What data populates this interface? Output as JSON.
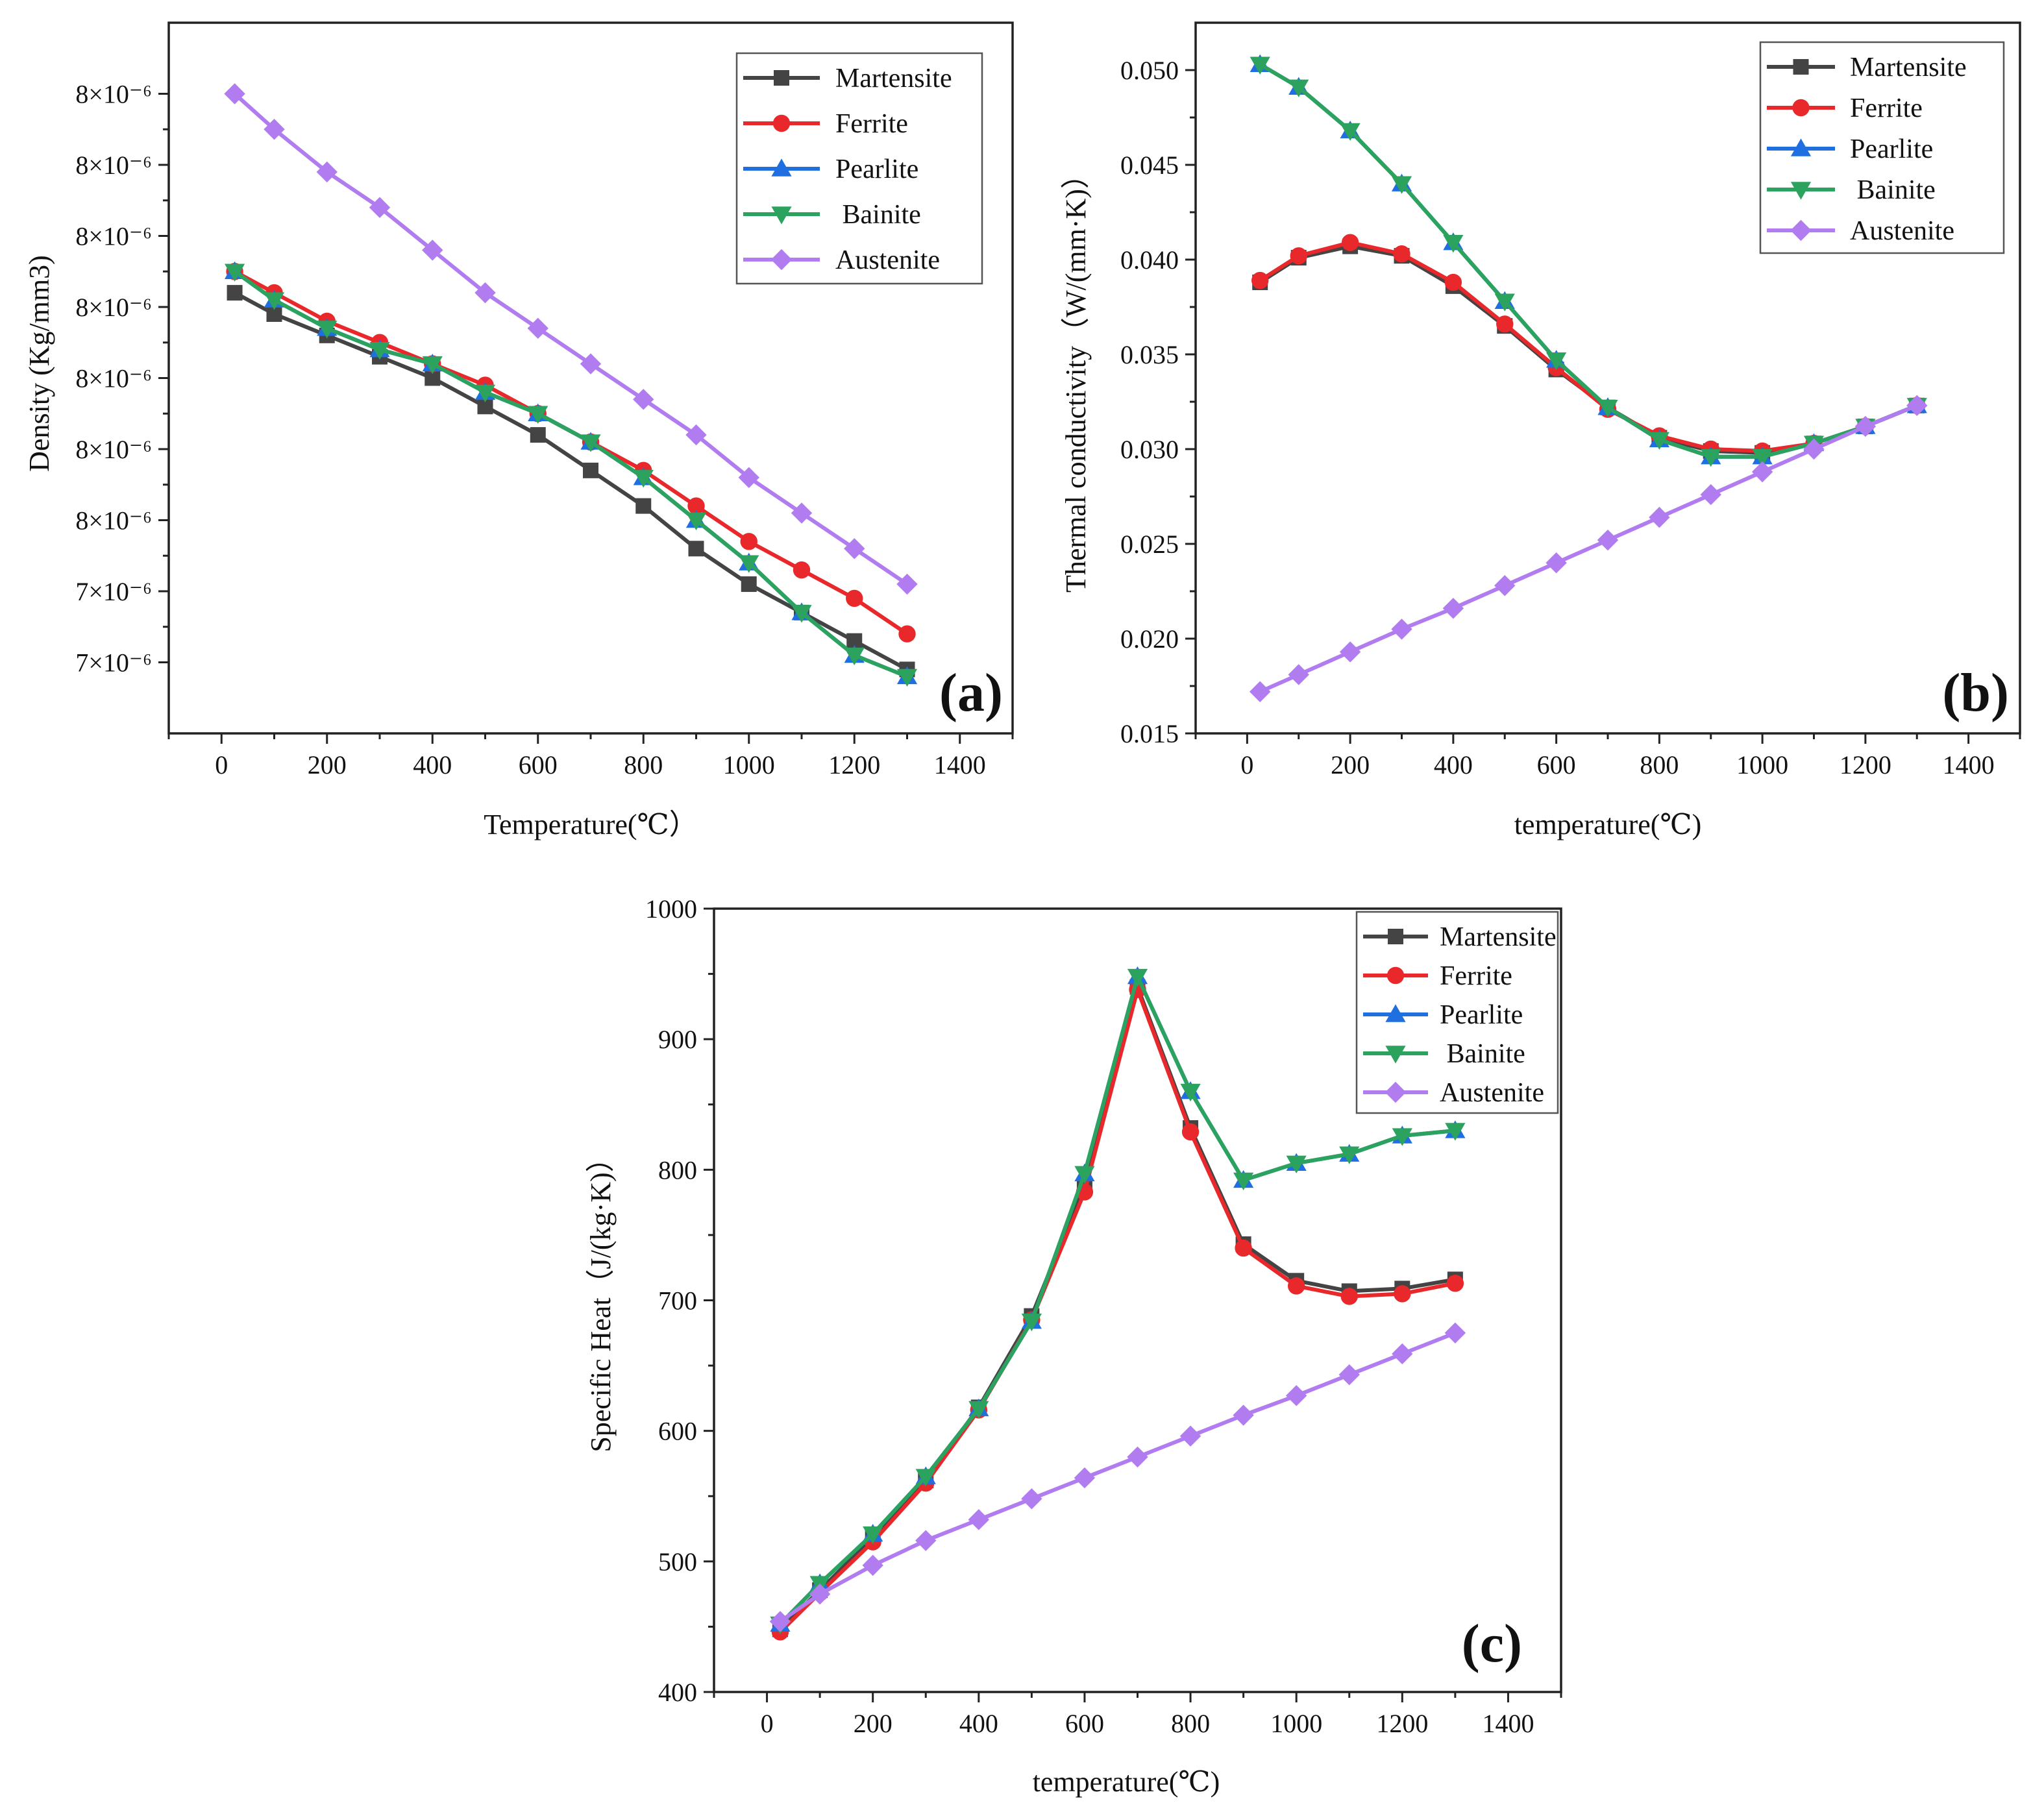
{
  "chart_data": [
    {
      "panel": "(a)",
      "type": "line",
      "title": "",
      "xlabel": "Temperature(℃）",
      "ylabel": "Density (Kg/mm3)",
      "xlim": [
        -100,
        1500
      ],
      "ylim": [
        7.2,
        8.2
      ],
      "xticks": [
        0,
        200,
        400,
        600,
        800,
        1000,
        1200,
        1400
      ],
      "yticks": [
        7.3,
        7.4,
        7.5,
        7.6,
        7.7,
        7.8,
        7.9,
        8.0,
        8.1
      ],
      "ytick_labels": [
        "7×10⁻⁶",
        "7×10⁻⁶",
        "8×10⁻⁶",
        "8×10⁻⁶",
        "8×10⁻⁶",
        "8×10⁻⁶",
        "8×10⁻⁶",
        "8×10⁻⁶",
        "8×10⁻⁶"
      ],
      "x": [
        25,
        100,
        200,
        300,
        400,
        500,
        600,
        700,
        800,
        900,
        1000,
        1100,
        1200,
        1300
      ],
      "legend_position": "top-right",
      "series": [
        {
          "name": "Martensite",
          "color": "#444444",
          "marker": "square",
          "values": [
            7.82,
            7.79,
            7.76,
            7.73,
            7.7,
            7.66,
            7.62,
            7.57,
            7.52,
            7.46,
            7.41,
            7.37,
            7.33,
            7.29
          ]
        },
        {
          "name": "Ferrite",
          "color": "#e8282b",
          "marker": "circle",
          "values": [
            7.85,
            7.82,
            7.78,
            7.75,
            7.72,
            7.69,
            7.65,
            7.61,
            7.57,
            7.52,
            7.47,
            7.43,
            7.39,
            7.34
          ]
        },
        {
          "name": "Pearlite",
          "color": "#1f6fe0",
          "marker": "triangle-up",
          "values": [
            7.85,
            7.81,
            7.77,
            7.74,
            7.72,
            7.68,
            7.65,
            7.61,
            7.56,
            7.5,
            7.44,
            7.37,
            7.31,
            7.28
          ]
        },
        {
          "name": " Bainite",
          "color": "#2ca25f",
          "marker": "triangle-down",
          "values": [
            7.85,
            7.81,
            7.77,
            7.74,
            7.72,
            7.68,
            7.65,
            7.61,
            7.56,
            7.5,
            7.44,
            7.37,
            7.31,
            7.28
          ]
        },
        {
          "name": "Austenite",
          "color": "#b07cf0",
          "marker": "diamond",
          "values": [
            8.1,
            8.05,
            7.99,
            7.94,
            7.88,
            7.82,
            7.77,
            7.72,
            7.67,
            7.62,
            7.56,
            7.51,
            7.46,
            7.41
          ]
        }
      ],
      "annotation": "(a)"
    },
    {
      "panel": "(b)",
      "type": "line",
      "title": "",
      "xlabel": "temperature(℃)",
      "ylabel": "Thermal conductivity（W/(mm·K)）",
      "xlim": [
        -100,
        1500
      ],
      "ylim": [
        0.015,
        0.0525
      ],
      "xticks": [
        0,
        200,
        400,
        600,
        800,
        1000,
        1200,
        1400
      ],
      "yticks": [
        0.015,
        0.02,
        0.025,
        0.03,
        0.035,
        0.04,
        0.045,
        0.05
      ],
      "ytick_labels": [
        "0.015",
        "0.020",
        "0.025",
        "0.030",
        "0.035",
        "0.040",
        "0.045",
        "0.050"
      ],
      "x": [
        25,
        100,
        200,
        300,
        400,
        500,
        600,
        700,
        800,
        900,
        1000,
        1100,
        1200,
        1300
      ],
      "legend_position": "top-right",
      "series": [
        {
          "name": "Martensite",
          "color": "#444444",
          "marker": "square",
          "values": [
            0.0388,
            0.0401,
            0.0407,
            0.0402,
            0.0386,
            0.0365,
            0.0342,
            0.0322,
            0.0306,
            0.0299,
            0.0298,
            0.0303,
            0.0312,
            0.0323
          ]
        },
        {
          "name": "Ferrite",
          "color": "#e8282b",
          "marker": "circle",
          "values": [
            0.0389,
            0.0402,
            0.0409,
            0.0403,
            0.0388,
            0.0366,
            0.0343,
            0.0321,
            0.0307,
            0.03,
            0.0299,
            0.0303,
            0.0312,
            0.0323
          ]
        },
        {
          "name": "Pearlite",
          "color": "#1f6fe0",
          "marker": "triangle-up",
          "values": [
            0.0503,
            0.0491,
            0.0468,
            0.044,
            0.0409,
            0.0378,
            0.0347,
            0.0322,
            0.0305,
            0.0296,
            0.0296,
            0.0303,
            0.0312,
            0.0323
          ]
        },
        {
          "name": " Bainite",
          "color": "#2ca25f",
          "marker": "triangle-down",
          "values": [
            0.0503,
            0.0491,
            0.0468,
            0.044,
            0.0409,
            0.0378,
            0.0347,
            0.0322,
            0.0305,
            0.0296,
            0.0296,
            0.0303,
            0.0312,
            0.0323
          ]
        },
        {
          "name": "Austenite",
          "color": "#b07cf0",
          "marker": "diamond",
          "values": [
            0.0172,
            0.0181,
            0.0193,
            0.0205,
            0.0216,
            0.0228,
            0.024,
            0.0252,
            0.0264,
            0.0276,
            0.0288,
            0.03,
            0.0312,
            0.0323
          ]
        }
      ],
      "annotation": "(b)"
    },
    {
      "panel": "(c)",
      "type": "line",
      "title": "",
      "xlabel": "temperature(℃)",
      "ylabel": "Specific Heat（J/(kg·K)）",
      "xlim": [
        -100,
        1500
      ],
      "ylim": [
        400,
        1000
      ],
      "xticks": [
        0,
        200,
        400,
        600,
        800,
        1000,
        1200,
        1400
      ],
      "yticks": [
        400,
        500,
        600,
        700,
        800,
        900,
        1000
      ],
      "ytick_labels": [
        "400",
        "500",
        "600",
        "700",
        "800",
        "900",
        "1000"
      ],
      "x": [
        25,
        100,
        200,
        300,
        400,
        500,
        600,
        700,
        800,
        900,
        1000,
        1100,
        1200,
        1300
      ],
      "legend_position": "top-right",
      "series": [
        {
          "name": "Martensite",
          "color": "#444444",
          "marker": "square",
          "values": [
            448,
            478,
            518,
            562,
            618,
            688,
            788,
            940,
            832,
            743,
            715,
            707,
            709,
            716
          ]
        },
        {
          "name": "Ferrite",
          "color": "#e8282b",
          "marker": "circle",
          "values": [
            446,
            476,
            515,
            560,
            616,
            685,
            783,
            938,
            829,
            740,
            711,
            703,
            705,
            713
          ]
        },
        {
          "name": "Pearlite",
          "color": "#1f6fe0",
          "marker": "triangle-up",
          "values": [
            452,
            483,
            521,
            565,
            617,
            684,
            797,
            948,
            860,
            792,
            805,
            812,
            826,
            830
          ]
        },
        {
          "name": " Bainite",
          "color": "#2ca25f",
          "marker": "triangle-down",
          "values": [
            452,
            483,
            521,
            565,
            617,
            684,
            797,
            948,
            860,
            792,
            805,
            812,
            826,
            830
          ]
        },
        {
          "name": "Austenite",
          "color": "#b07cf0",
          "marker": "diamond",
          "values": [
            454,
            475,
            497,
            516,
            532,
            548,
            564,
            580,
            596,
            612,
            627,
            643,
            659,
            675
          ]
        }
      ],
      "annotation": "(c)"
    }
  ]
}
